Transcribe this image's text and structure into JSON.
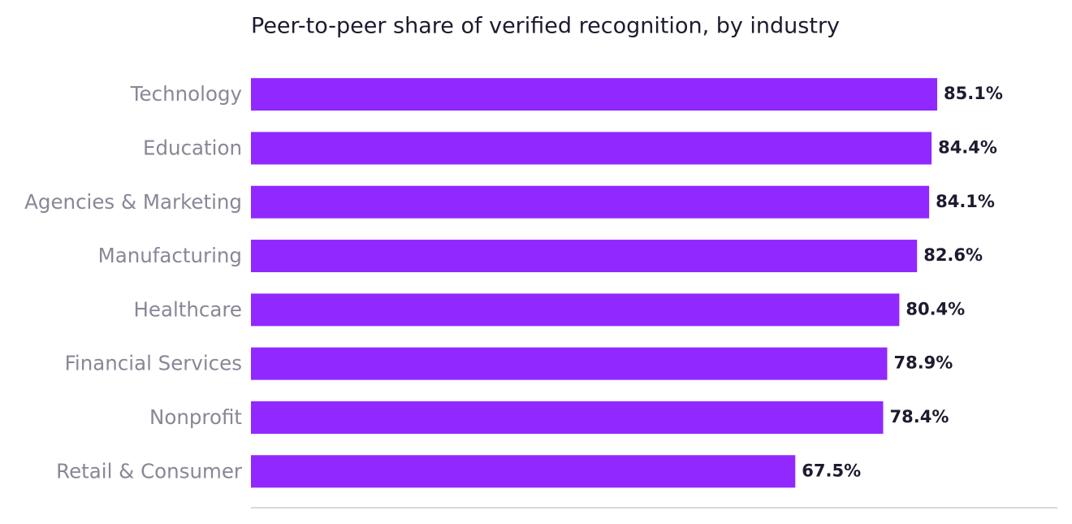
{
  "chart_data": {
    "type": "bar",
    "orientation": "horizontal",
    "title": "Peer-to-peer share of verified recognition, by industry",
    "categories": [
      "Technology",
      "Education",
      "Agencies & Marketing",
      "Manufacturing",
      "Healthcare",
      "Financial Services",
      "Nonprofit",
      "Retail & Consumer"
    ],
    "values": [
      85.1,
      84.4,
      84.1,
      82.6,
      80.4,
      78.9,
      78.4,
      67.5
    ],
    "value_labels": [
      "85.1%",
      "84.4%",
      "84.1%",
      "82.6%",
      "80.4%",
      "78.9%",
      "78.4%",
      "67.5%"
    ],
    "color": "#9128ff",
    "xlim": [
      0,
      100
    ]
  }
}
